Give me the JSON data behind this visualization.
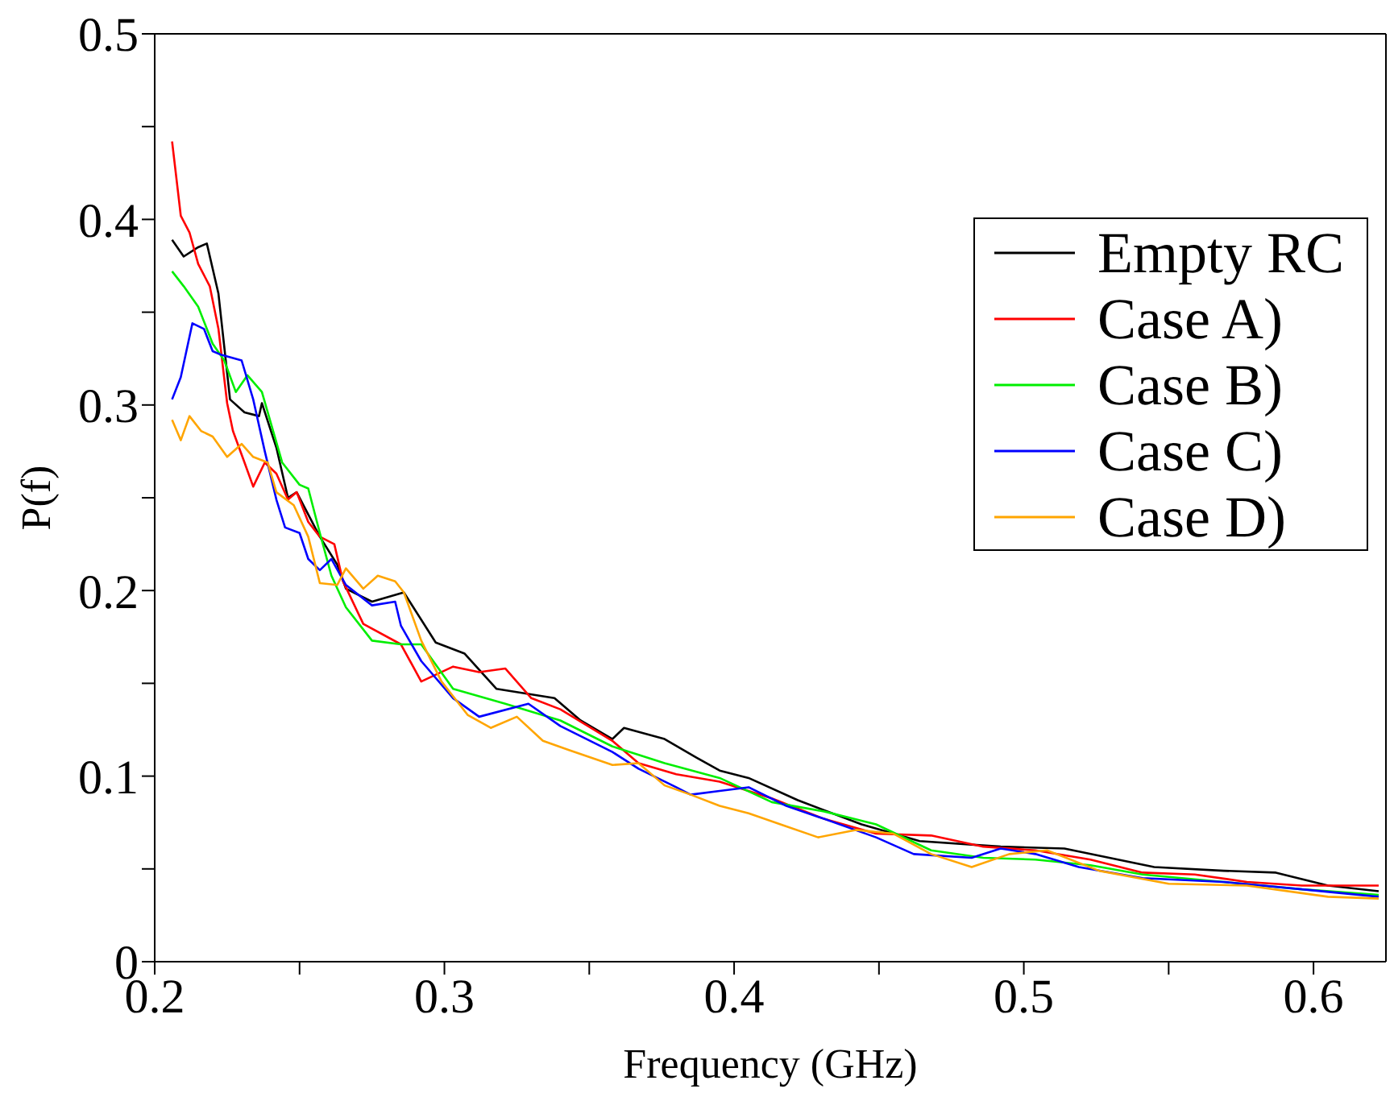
{
  "chart_data": {
    "type": "line",
    "xlabel": "Frequency (GHz)",
    "ylabel": "P(f)",
    "xlim": [
      0.2,
      0.625
    ],
    "xticks": [
      0.2,
      {
        "value": 0.25,
        "label": null
      },
      0.3,
      {
        "value": 0.35,
        "label": null
      },
      0.4,
      {
        "value": 0.45,
        "label": null
      },
      0.5,
      {
        "value": 0.55,
        "label": null
      },
      0.6
    ],
    "ylim": [
      0,
      0.5
    ],
    "yticks": [
      0,
      {
        "value": 0.05,
        "label": null
      },
      0.1,
      {
        "value": 0.15,
        "label": null
      },
      0.2,
      {
        "value": 0.25,
        "label": null
      },
      0.3,
      {
        "value": 0.35,
        "label": null
      },
      0.4,
      {
        "value": 0.45,
        "label": null
      },
      0.5
    ],
    "grid": false,
    "legend": "top right",
    "marker": "none",
    "line_style": "solid",
    "series": [
      {
        "name": "Empty RC",
        "color": "#000000",
        "x": [
          0.206,
          0.21,
          0.215,
          0.218,
          0.222,
          0.226,
          0.231,
          0.236,
          0.237,
          0.242,
          0.246,
          0.249,
          0.257,
          0.263,
          0.266,
          0.275,
          0.286,
          0.297,
          0.307,
          0.318,
          0.338,
          0.347,
          0.358,
          0.362,
          0.376,
          0.387,
          0.395,
          0.405,
          0.422,
          0.444,
          0.464,
          0.492,
          0.514,
          0.545,
          0.569,
          0.587,
          0.605,
          0.6225
        ],
        "values": [
          0.389,
          0.38,
          0.385,
          0.387,
          0.36,
          0.303,
          0.296,
          0.294,
          0.301,
          0.277,
          0.25,
          0.253,
          0.229,
          0.214,
          0.201,
          0.194,
          0.199,
          0.172,
          0.166,
          0.147,
          0.142,
          0.13,
          0.12,
          0.126,
          0.12,
          0.11,
          0.103,
          0.099,
          0.087,
          0.074,
          0.065,
          0.062,
          0.061,
          0.051,
          0.049,
          0.048,
          0.041,
          0.038
        ]
      },
      {
        "name": "Case A)",
        "color": "#ff0000",
        "x": [
          0.206,
          0.209,
          0.212,
          0.215,
          0.219,
          0.222,
          0.225,
          0.227,
          0.231,
          0.234,
          0.238,
          0.242,
          0.246,
          0.249,
          0.253,
          0.257,
          0.262,
          0.265,
          0.272,
          0.285,
          0.292,
          0.303,
          0.312,
          0.321,
          0.33,
          0.34,
          0.358,
          0.367,
          0.38,
          0.395,
          0.413,
          0.431,
          0.449,
          0.468,
          0.486,
          0.504,
          0.523,
          0.541,
          0.559,
          0.577,
          0.596,
          0.6225
        ],
        "values": [
          0.442,
          0.402,
          0.393,
          0.376,
          0.364,
          0.341,
          0.301,
          0.286,
          0.269,
          0.256,
          0.269,
          0.263,
          0.249,
          0.253,
          0.237,
          0.229,
          0.225,
          0.205,
          0.182,
          0.171,
          0.151,
          0.159,
          0.156,
          0.158,
          0.142,
          0.136,
          0.119,
          0.107,
          0.101,
          0.097,
          0.088,
          0.077,
          0.069,
          0.068,
          0.062,
          0.06,
          0.055,
          0.048,
          0.047,
          0.043,
          0.041,
          0.041
        ]
      },
      {
        "name": "Case B)",
        "color": "#00ee00",
        "x": [
          0.206,
          0.21,
          0.215,
          0.22,
          0.224,
          0.228,
          0.232,
          0.237,
          0.244,
          0.25,
          0.253,
          0.257,
          0.261,
          0.266,
          0.275,
          0.285,
          0.292,
          0.303,
          0.321,
          0.34,
          0.358,
          0.376,
          0.395,
          0.413,
          0.431,
          0.449,
          0.468,
          0.486,
          0.504,
          0.523,
          0.541,
          0.569,
          0.596,
          0.6225
        ],
        "values": [
          0.372,
          0.364,
          0.353,
          0.333,
          0.324,
          0.307,
          0.316,
          0.307,
          0.269,
          0.257,
          0.255,
          0.231,
          0.208,
          0.191,
          0.173,
          0.171,
          0.171,
          0.147,
          0.139,
          0.13,
          0.116,
          0.107,
          0.099,
          0.086,
          0.081,
          0.074,
          0.06,
          0.056,
          0.055,
          0.052,
          0.047,
          0.043,
          0.039,
          0.036
        ]
      },
      {
        "name": "Case C)",
        "color": "#0000ff",
        "x": [
          0.206,
          0.209,
          0.213,
          0.217,
          0.22,
          0.223,
          0.23,
          0.234,
          0.238,
          0.242,
          0.245,
          0.25,
          0.253,
          0.257,
          0.261,
          0.266,
          0.275,
          0.283,
          0.285,
          0.292,
          0.303,
          0.312,
          0.329,
          0.34,
          0.358,
          0.367,
          0.38,
          0.385,
          0.395,
          0.405,
          0.418,
          0.431,
          0.449,
          0.462,
          0.482,
          0.492,
          0.504,
          0.519,
          0.541,
          0.569,
          0.596,
          0.6225
        ],
        "values": [
          0.303,
          0.315,
          0.344,
          0.341,
          0.329,
          0.327,
          0.324,
          0.303,
          0.275,
          0.249,
          0.234,
          0.231,
          0.217,
          0.211,
          0.217,
          0.203,
          0.192,
          0.194,
          0.181,
          0.162,
          0.142,
          0.132,
          0.139,
          0.127,
          0.113,
          0.104,
          0.094,
          0.09,
          0.092,
          0.094,
          0.084,
          0.077,
          0.067,
          0.058,
          0.056,
          0.061,
          0.058,
          0.051,
          0.045,
          0.043,
          0.039,
          0.035
        ]
      },
      {
        "name": "Case D)",
        "color": "#ffa500",
        "x": [
          0.206,
          0.209,
          0.212,
          0.216,
          0.22,
          0.225,
          0.23,
          0.234,
          0.239,
          0.242,
          0.248,
          0.253,
          0.257,
          0.263,
          0.266,
          0.272,
          0.277,
          0.283,
          0.286,
          0.292,
          0.299,
          0.308,
          0.316,
          0.325,
          0.334,
          0.343,
          0.358,
          0.367,
          0.376,
          0.385,
          0.395,
          0.405,
          0.416,
          0.429,
          0.442,
          0.455,
          0.468,
          0.482,
          0.495,
          0.508,
          0.526,
          0.55,
          0.577,
          0.605,
          0.6225
        ],
        "values": [
          0.292,
          0.281,
          0.294,
          0.286,
          0.283,
          0.272,
          0.279,
          0.272,
          0.269,
          0.253,
          0.246,
          0.229,
          0.204,
          0.203,
          0.212,
          0.201,
          0.208,
          0.205,
          0.199,
          0.173,
          0.151,
          0.133,
          0.126,
          0.132,
          0.119,
          0.114,
          0.106,
          0.107,
          0.095,
          0.09,
          0.084,
          0.08,
          0.074,
          0.067,
          0.071,
          0.069,
          0.058,
          0.051,
          0.058,
          0.06,
          0.049,
          0.042,
          0.041,
          0.035,
          0.034
        ]
      }
    ]
  }
}
